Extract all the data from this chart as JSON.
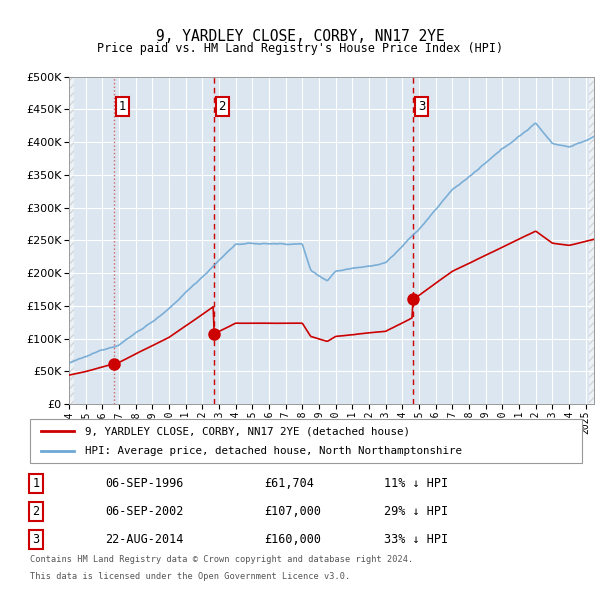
{
  "title": "9, YARDLEY CLOSE, CORBY, NN17 2YE",
  "subtitle": "Price paid vs. HM Land Registry's House Price Index (HPI)",
  "legend_line1": "9, YARDLEY CLOSE, CORBY, NN17 2YE (detached house)",
  "legend_line2": "HPI: Average price, detached house, North Northamptonshire",
  "footer1": "Contains HM Land Registry data © Crown copyright and database right 2024.",
  "footer2": "This data is licensed under the Open Government Licence v3.0.",
  "sale_dates": [
    1996.67,
    2002.67,
    2014.63
  ],
  "sale_prices": [
    61704,
    107000,
    160000
  ],
  "sale_labels": [
    "1",
    "2",
    "3"
  ],
  "sale_info": [
    {
      "label": "1",
      "date": "06-SEP-1996",
      "price": "£61,704",
      "pct": "11% ↓ HPI"
    },
    {
      "label": "2",
      "date": "06-SEP-2002",
      "price": "£107,000",
      "pct": "29% ↓ HPI"
    },
    {
      "label": "3",
      "date": "22-AUG-2014",
      "price": "£160,000",
      "pct": "33% ↓ HPI"
    }
  ],
  "hpi_color": "#6fa8d4",
  "sale_color": "#cc0000",
  "dashed_color": "#cc0000",
  "bg_color": "#dce6f0",
  "grid_color": "#ffffff",
  "ylim": [
    0,
    500000
  ],
  "yticks": [
    0,
    50000,
    100000,
    150000,
    200000,
    250000,
    300000,
    350000,
    400000,
    450000,
    500000
  ],
  "xlim_start": 1994.0,
  "xlim_end": 2025.5,
  "xticks": [
    1994,
    1995,
    1996,
    1997,
    1998,
    1999,
    2000,
    2001,
    2002,
    2003,
    2004,
    2005,
    2006,
    2007,
    2008,
    2009,
    2010,
    2011,
    2012,
    2013,
    2014,
    2015,
    2016,
    2017,
    2018,
    2019,
    2020,
    2021,
    2022,
    2023,
    2024,
    2025
  ]
}
